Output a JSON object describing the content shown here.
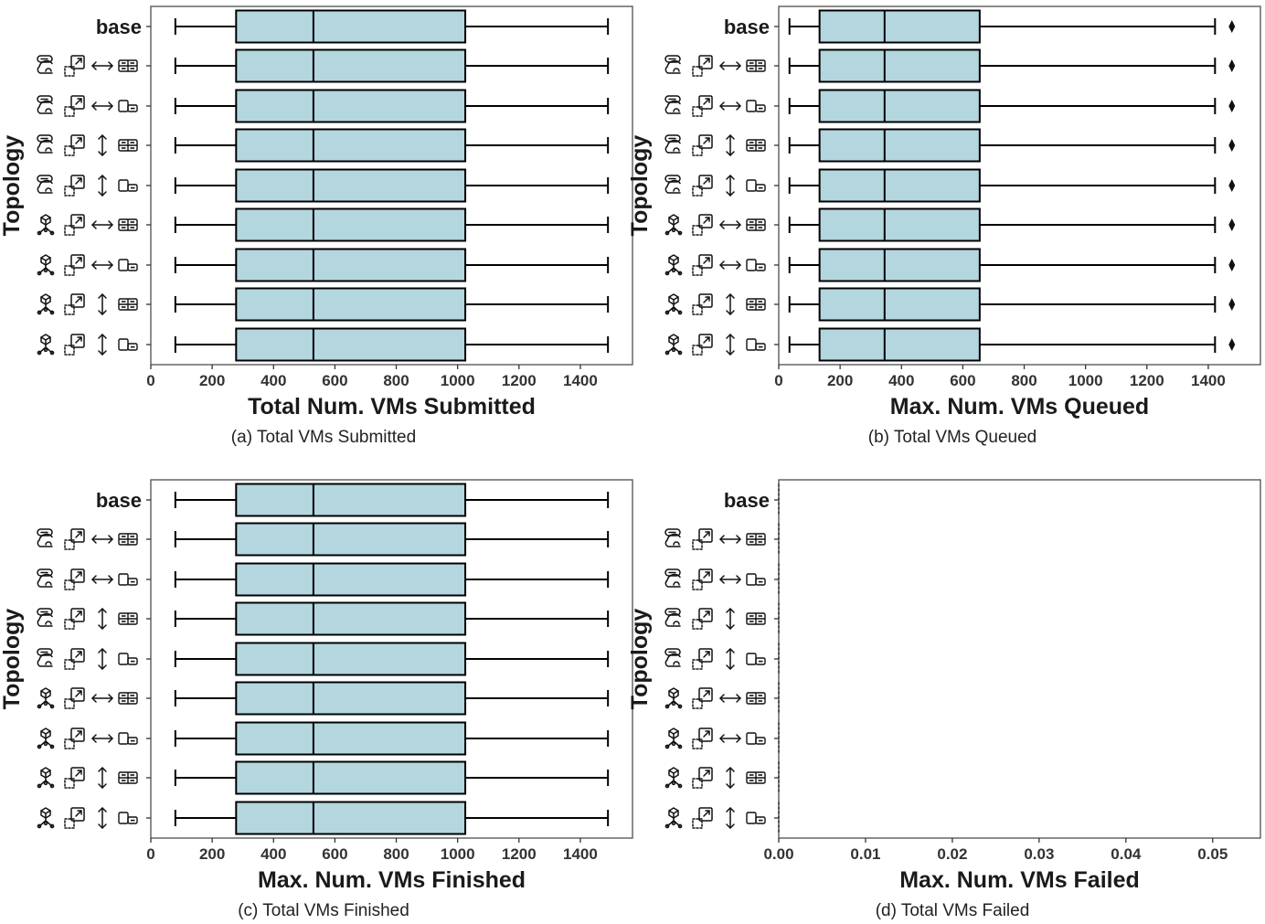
{
  "colors": {
    "box_fill": "#b3d6df",
    "stroke": "#000000",
    "frame": "#4d4d4d",
    "text": "#1a1a1a"
  },
  "topology_labels": [
    {
      "text": "base"
    },
    {
      "icons": [
        "storage-cloud-icon",
        "scale-out-icon",
        "horizontal-arrow-icon",
        "multi-host-icon"
      ]
    },
    {
      "icons": [
        "storage-cloud-icon",
        "scale-out-icon",
        "horizontal-arrow-icon",
        "single-host-icon"
      ]
    },
    {
      "icons": [
        "storage-cloud-icon",
        "scale-out-icon",
        "vertical-arrow-icon",
        "multi-host-icon"
      ]
    },
    {
      "icons": [
        "storage-cloud-icon",
        "scale-out-icon",
        "vertical-arrow-icon",
        "single-host-icon"
      ]
    },
    {
      "icons": [
        "network-hierarchy-icon",
        "scale-out-icon",
        "horizontal-arrow-icon",
        "multi-host-icon"
      ]
    },
    {
      "icons": [
        "network-hierarchy-icon",
        "scale-out-icon",
        "horizontal-arrow-icon",
        "single-host-icon"
      ]
    },
    {
      "icons": [
        "network-hierarchy-icon",
        "scale-out-icon",
        "vertical-arrow-icon",
        "multi-host-icon"
      ]
    },
    {
      "icons": [
        "network-hierarchy-icon",
        "scale-out-icon",
        "vertical-arrow-icon",
        "single-host-icon"
      ]
    }
  ],
  "chart_data": [
    {
      "type": "boxplot",
      "orientation": "horizontal",
      "caption": "(a) Total VMs Submitted",
      "xlabel": "Total Num. VMs Submitted",
      "ylabel": "Topology",
      "xlim": [
        0,
        1570
      ],
      "xticks": [
        0,
        200,
        400,
        600,
        800,
        1000,
        1200,
        1400
      ],
      "xtick_labels": [
        "0",
        "200",
        "400",
        "600",
        "800",
        "1000",
        "1200",
        "1400"
      ],
      "grid": false,
      "box": {
        "min": 80,
        "q1": 278,
        "median": 530,
        "q3": 1025,
        "max": 1490
      },
      "outliers": []
    },
    {
      "type": "boxplot",
      "orientation": "horizontal",
      "caption": "(b) Total VMs Queued",
      "xlabel": "Max. Num. VMs Queued",
      "ylabel": "Topology",
      "xlim": [
        0,
        1570
      ],
      "xticks": [
        0,
        200,
        400,
        600,
        800,
        1000,
        1200,
        1400
      ],
      "xtick_labels": [
        "0",
        "200",
        "400",
        "600",
        "800",
        "1000",
        "1200",
        "1400"
      ],
      "grid": false,
      "box": {
        "min": 35,
        "q1": 133,
        "median": 345,
        "q3": 655,
        "max": 1422
      },
      "outliers": [
        1477
      ]
    },
    {
      "type": "boxplot",
      "orientation": "horizontal",
      "caption": "(c) Total VMs Finished",
      "xlabel": "Max. Num. VMs Finished",
      "ylabel": "Topology",
      "xlim": [
        0,
        1570
      ],
      "xticks": [
        0,
        200,
        400,
        600,
        800,
        1000,
        1200,
        1400
      ],
      "xtick_labels": [
        "0",
        "200",
        "400",
        "600",
        "800",
        "1000",
        "1200",
        "1400"
      ],
      "grid": false,
      "box": {
        "min": 80,
        "q1": 278,
        "median": 530,
        "q3": 1025,
        "max": 1490
      },
      "outliers": []
    },
    {
      "type": "boxplot",
      "orientation": "horizontal",
      "caption": "(d) Total VMs Failed",
      "xlabel": "Max. Num. VMs Failed",
      "ylabel": "Topology",
      "xlim": [
        0,
        0.0555
      ],
      "xticks": [
        0,
        0.01,
        0.02,
        0.03,
        0.04,
        0.05
      ],
      "xtick_labels": [
        "0.00",
        "0.01",
        "0.02",
        "0.03",
        "0.04",
        "0.05"
      ],
      "grid": false,
      "box": {
        "min": 0,
        "q1": 0,
        "median": 0,
        "q3": 0,
        "max": 0
      },
      "outliers": []
    }
  ]
}
